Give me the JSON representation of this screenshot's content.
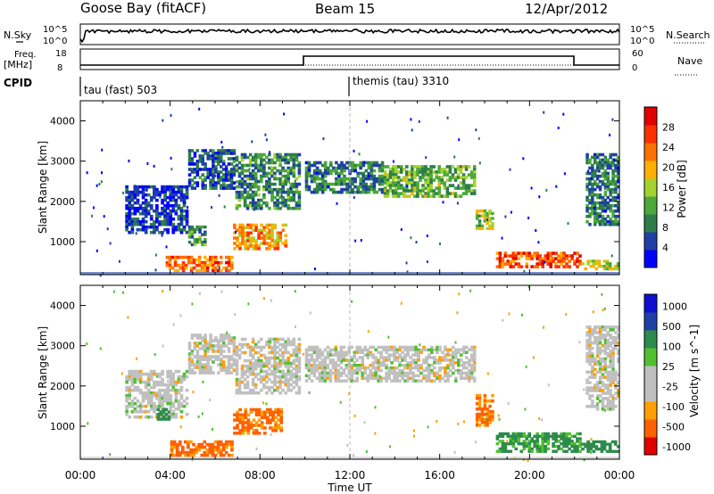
{
  "header": {
    "station": "Goose Bay (fitACF)",
    "beam": "Beam 15",
    "date": "12/Apr/2012"
  },
  "noise_panel": {
    "left_label": "N.Sky",
    "left_ticks": [
      "10^5",
      "10^0"
    ],
    "right_label": "N.Search",
    "right_ticks": [
      "10^5",
      "10^0"
    ]
  },
  "freq_panel": {
    "left_label_line1": "Freq.",
    "left_label_line2": "[MHz]",
    "left_ticks": [
      "18",
      "8"
    ],
    "right_label": "Nave",
    "right_ticks": [
      "60",
      "0"
    ]
  },
  "cpid": {
    "label": "CPID",
    "modes": [
      {
        "name": "tau (fast) 503",
        "start_hour": 0
      },
      {
        "name": "themis (tau) 3310",
        "start_hour": 12
      }
    ]
  },
  "colors": {
    "power_scale": [
      "#0000ff",
      "#1f3fa6",
      "#2e7d4a",
      "#4ca83a",
      "#a5d32e",
      "#ffb000",
      "#ff7000",
      "#ff3000",
      "#e00000"
    ],
    "velocity_scale": [
      "#e00000",
      "#ff6000",
      "#ff9f00",
      "#c0c0c0",
      "#c0c0c0",
      "#50c030",
      "#2c8c4c",
      "#1f3fa6",
      "#1010d0"
    ],
    "gray": "#c8c8c8"
  },
  "chart_data": [
    {
      "type": "heatmap",
      "title": "",
      "xlabel": "Time UT",
      "ylabel": "Slant Range [km]",
      "x_ticks": [
        "00:00",
        "04:00",
        "08:00",
        "12:00",
        "16:00",
        "20:00",
        "00:00"
      ],
      "x_range_hours": [
        0,
        24
      ],
      "y_ticks": [
        1000,
        2000,
        3000,
        4000
      ],
      "y_range_km": [
        180,
        4500
      ],
      "colorbar_label": "Power [dB]",
      "colorbar_ticks": [
        "4",
        "8",
        "12",
        "16",
        "20",
        "24",
        "28"
      ],
      "colorbar_range": [
        0,
        30
      ],
      "regions": [
        {
          "t0": 2.0,
          "t1": 4.8,
          "r0": 1200,
          "r1": 2400,
          "level": 4
        },
        {
          "t0": 4.8,
          "t1": 6.9,
          "r0": 2300,
          "r1": 3300,
          "level": 6
        },
        {
          "t0": 6.9,
          "t1": 9.8,
          "r0": 1800,
          "r1": 3200,
          "level": 9
        },
        {
          "t0": 10.0,
          "t1": 13.5,
          "r0": 2200,
          "r1": 3000,
          "level": 8
        },
        {
          "t0": 13.5,
          "t1": 17.6,
          "r0": 2100,
          "r1": 2900,
          "level": 12
        },
        {
          "t0": 3.8,
          "t1": 6.8,
          "r0": 250,
          "r1": 650,
          "level": 22
        },
        {
          "t0": 4.8,
          "t1": 5.6,
          "r0": 900,
          "r1": 1400,
          "level": 10
        },
        {
          "t0": 6.8,
          "t1": 9.2,
          "r0": 800,
          "r1": 1450,
          "level": 20
        },
        {
          "t0": 17.6,
          "t1": 18.4,
          "r0": 1300,
          "r1": 1800,
          "level": 14
        },
        {
          "t0": 18.5,
          "t1": 22.3,
          "r0": 350,
          "r1": 750,
          "level": 24
        },
        {
          "t0": 22.3,
          "t1": 24.0,
          "r0": 300,
          "r1": 550,
          "level": 16
        },
        {
          "t0": 22.5,
          "t1": 24.0,
          "r0": 1400,
          "r1": 3200,
          "level": 8
        }
      ]
    },
    {
      "type": "heatmap",
      "title": "",
      "xlabel": "Time UT",
      "ylabel": "Slant Range [km]",
      "x_ticks": [
        "00:00",
        "04:00",
        "08:00",
        "12:00",
        "16:00",
        "20:00",
        "00:00"
      ],
      "x_range_hours": [
        0,
        24
      ],
      "y_ticks": [
        1000,
        2000,
        3000,
        4000
      ],
      "y_range_km": [
        180,
        4500
      ],
      "colorbar_label": "Velocity [m s^-1]",
      "colorbar_ticks": [
        "1000",
        "500",
        "100",
        "25",
        "-25",
        "-100",
        "-500",
        "-1000"
      ],
      "colorbar_range": [
        -1000,
        1000
      ],
      "regions": [
        {
          "t0": 2.0,
          "t1": 4.8,
          "r0": 1200,
          "r1": 2400,
          "level": 0
        },
        {
          "t0": 4.8,
          "t1": 6.9,
          "r0": 2300,
          "r1": 3300,
          "level": 0
        },
        {
          "t0": 6.9,
          "t1": 9.8,
          "r0": 1800,
          "r1": 3200,
          "level": 0
        },
        {
          "t0": 10.0,
          "t1": 17.6,
          "r0": 2100,
          "r1": 3000,
          "level": 0
        },
        {
          "t0": 4.0,
          "t1": 6.8,
          "r0": 250,
          "r1": 650,
          "level": -200
        },
        {
          "t0": 6.8,
          "t1": 9.0,
          "r0": 800,
          "r1": 1450,
          "level": -150
        },
        {
          "t0": 3.4,
          "t1": 4.0,
          "r0": 1150,
          "r1": 1450,
          "level": 300
        },
        {
          "t0": 17.6,
          "t1": 18.4,
          "r0": 1000,
          "r1": 1800,
          "level": -120
        },
        {
          "t0": 18.5,
          "t1": 22.3,
          "r0": 350,
          "r1": 850,
          "level": 150
        },
        {
          "t0": 22.3,
          "t1": 24.0,
          "r0": 350,
          "r1": 650,
          "level": 300
        },
        {
          "t0": 22.5,
          "t1": 24.0,
          "r0": 1400,
          "r1": 3500,
          "level": 0
        }
      ]
    }
  ]
}
